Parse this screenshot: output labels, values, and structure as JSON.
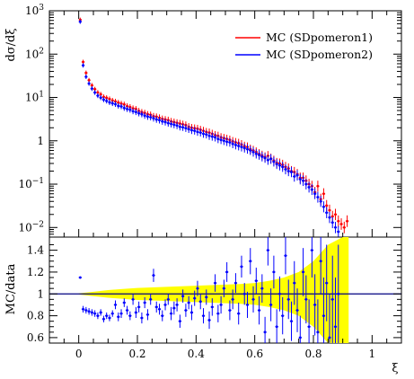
{
  "chart_data": [
    {
      "type": "scatter",
      "panel": "main",
      "ylabel": "dσ/dξ",
      "yscale": "log",
      "ylim": [
        0.006,
        1000
      ],
      "xlim": [
        -0.1,
        1.1
      ],
      "y_ticks": [
        {
          "value": 0.01,
          "base": "10",
          "exp": "−2"
        },
        {
          "value": 0.1,
          "base": "10",
          "exp": "−1"
        },
        {
          "value": 1,
          "base": "1",
          "exp": ""
        },
        {
          "value": 10,
          "base": "10",
          "exp": "1"
        },
        {
          "value": 100,
          "base": "10",
          "exp": "2"
        },
        {
          "value": 1000,
          "base": "10",
          "exp": "3"
        }
      ],
      "legend": "top-right",
      "series": [
        {
          "name": "MC (SDpomeron1)",
          "color": "#ff0000",
          "x": [
            0.005,
            0.015,
            0.025,
            0.035,
            0.045,
            0.055,
            0.065,
            0.075,
            0.085,
            0.095,
            0.105,
            0.115,
            0.125,
            0.135,
            0.145,
            0.155,
            0.165,
            0.175,
            0.185,
            0.195,
            0.205,
            0.215,
            0.225,
            0.235,
            0.245,
            0.255,
            0.265,
            0.275,
            0.285,
            0.295,
            0.305,
            0.315,
            0.325,
            0.335,
            0.345,
            0.355,
            0.365,
            0.375,
            0.385,
            0.395,
            0.405,
            0.415,
            0.425,
            0.435,
            0.445,
            0.455,
            0.465,
            0.475,
            0.485,
            0.495,
            0.505,
            0.515,
            0.525,
            0.535,
            0.545,
            0.555,
            0.565,
            0.575,
            0.585,
            0.595,
            0.605,
            0.615,
            0.625,
            0.635,
            0.645,
            0.655,
            0.665,
            0.675,
            0.685,
            0.695,
            0.705,
            0.715,
            0.725,
            0.735,
            0.745,
            0.755,
            0.765,
            0.775,
            0.785,
            0.795,
            0.805,
            0.815,
            0.825,
            0.835,
            0.845,
            0.855,
            0.865,
            0.875,
            0.885,
            0.895,
            0.905,
            0.915
          ],
          "y": [
            620,
            66,
            37,
            25,
            19,
            15.5,
            13,
            11.8,
            10.3,
            9.8,
            9.2,
            8.5,
            8.1,
            7.6,
            7.2,
            6.9,
            6.3,
            6.0,
            5.6,
            5.4,
            4.9,
            4.6,
            4.4,
            4.1,
            4.0,
            3.7,
            3.6,
            3.4,
            3.2,
            3.1,
            3.0,
            2.8,
            2.7,
            2.6,
            2.5,
            2.4,
            2.3,
            2.1,
            2.0,
            1.95,
            1.9,
            1.8,
            1.7,
            1.6,
            1.55,
            1.45,
            1.35,
            1.3,
            1.2,
            1.15,
            1.1,
            1.05,
            0.97,
            0.92,
            0.88,
            0.82,
            0.75,
            0.72,
            0.64,
            0.6,
            0.55,
            0.5,
            0.46,
            0.42,
            0.45,
            0.39,
            0.35,
            0.31,
            0.3,
            0.28,
            0.25,
            0.23,
            0.2,
            0.19,
            0.17,
            0.14,
            0.14,
            0.12,
            0.1,
            0.09,
            0.065,
            0.09,
            0.045,
            0.06,
            0.032,
            0.025,
            0.018,
            0.02,
            0.014,
            0.012,
            0.01,
            0.014
          ]
        },
        {
          "name": "MC (SDpomeron2)",
          "color": "#0000ff",
          "x": [
            0.005,
            0.015,
            0.025,
            0.035,
            0.045,
            0.055,
            0.065,
            0.075,
            0.085,
            0.095,
            0.105,
            0.115,
            0.125,
            0.135,
            0.145,
            0.155,
            0.165,
            0.175,
            0.185,
            0.195,
            0.205,
            0.215,
            0.225,
            0.235,
            0.245,
            0.255,
            0.265,
            0.275,
            0.285,
            0.295,
            0.305,
            0.315,
            0.325,
            0.335,
            0.345,
            0.355,
            0.365,
            0.375,
            0.385,
            0.395,
            0.405,
            0.415,
            0.425,
            0.435,
            0.445,
            0.455,
            0.465,
            0.475,
            0.485,
            0.495,
            0.505,
            0.515,
            0.525,
            0.535,
            0.545,
            0.555,
            0.565,
            0.575,
            0.585,
            0.595,
            0.605,
            0.615,
            0.625,
            0.635,
            0.645,
            0.655,
            0.665,
            0.675,
            0.685,
            0.695,
            0.705,
            0.715,
            0.725,
            0.735,
            0.745,
            0.755,
            0.765,
            0.775,
            0.785,
            0.795,
            0.805,
            0.815,
            0.825,
            0.835,
            0.845,
            0.855,
            0.865,
            0.875,
            0.885
          ],
          "y": [
            560,
            55,
            30,
            21,
            16,
            13,
            11,
            9.9,
            8.9,
            8.3,
            7.7,
            7.3,
            7.0,
            6.4,
            6.2,
            5.7,
            5.4,
            5.2,
            4.8,
            4.6,
            4.3,
            4.1,
            3.8,
            3.6,
            3.5,
            3.3,
            3.1,
            3.0,
            2.8,
            2.7,
            2.55,
            2.45,
            2.35,
            2.25,
            2.1,
            2.05,
            1.95,
            1.85,
            1.75,
            1.7,
            1.6,
            1.55,
            1.45,
            1.4,
            1.3,
            1.25,
            1.2,
            1.1,
            1.05,
            1.0,
            0.95,
            0.92,
            0.85,
            0.8,
            0.76,
            0.72,
            0.68,
            0.64,
            0.6,
            0.55,
            0.5,
            0.47,
            0.43,
            0.4,
            0.36,
            0.38,
            0.33,
            0.29,
            0.27,
            0.25,
            0.22,
            0.2,
            0.19,
            0.15,
            0.16,
            0.13,
            0.12,
            0.1,
            0.085,
            0.075,
            0.06,
            0.05,
            0.04,
            0.03,
            0.022,
            0.017,
            0.013,
            0.01,
            0.008
          ]
        }
      ]
    },
    {
      "type": "scatter",
      "panel": "ratio",
      "ylabel": "MC/data",
      "xlabel": "ξ",
      "ylim": [
        0.55,
        1.52
      ],
      "xlim": [
        -0.1,
        1.1
      ],
      "y_ticks": [
        "0.6",
        "0.8",
        "1",
        "1.2",
        "1.4"
      ],
      "x_ticks": [
        "0",
        "0.2",
        "0.4",
        "0.6",
        "0.8",
        "1"
      ],
      "x_tick_values": [
        0,
        0.2,
        0.4,
        0.6,
        0.8,
        1
      ],
      "y_tick_values": [
        0.6,
        0.8,
        1.0,
        1.2,
        1.4
      ],
      "reference_line": 1.0,
      "band_color": "#ffff00",
      "band": {
        "x": [
          0.0,
          0.05,
          0.1,
          0.15,
          0.2,
          0.25,
          0.3,
          0.35,
          0.4,
          0.45,
          0.5,
          0.55,
          0.6,
          0.65,
          0.7,
          0.75,
          0.8,
          0.85,
          0.9,
          0.92
        ],
        "half_width": [
          0.005,
          0.02,
          0.035,
          0.045,
          0.055,
          0.06,
          0.065,
          0.07,
          0.075,
          0.08,
          0.085,
          0.09,
          0.1,
          0.12,
          0.15,
          0.2,
          0.3,
          0.45,
          0.55,
          0.55
        ]
      },
      "series": [
        {
          "name": "MC (SDpomeron2)",
          "color": "#0000ff",
          "x": [
            0.005,
            0.015,
            0.025,
            0.035,
            0.045,
            0.055,
            0.065,
            0.075,
            0.085,
            0.095,
            0.105,
            0.115,
            0.125,
            0.135,
            0.145,
            0.155,
            0.165,
            0.175,
            0.185,
            0.195,
            0.205,
            0.215,
            0.225,
            0.235,
            0.245,
            0.255,
            0.265,
            0.275,
            0.285,
            0.295,
            0.305,
            0.315,
            0.325,
            0.335,
            0.345,
            0.355,
            0.365,
            0.375,
            0.385,
            0.395,
            0.405,
            0.415,
            0.425,
            0.435,
            0.445,
            0.455,
            0.465,
            0.475,
            0.485,
            0.495,
            0.505,
            0.515,
            0.525,
            0.535,
            0.545,
            0.555,
            0.565,
            0.575,
            0.585,
            0.595,
            0.605,
            0.615,
            0.625,
            0.635,
            0.645,
            0.655,
            0.665,
            0.675,
            0.685,
            0.695,
            0.705,
            0.715,
            0.725,
            0.735,
            0.745,
            0.755,
            0.765,
            0.775,
            0.785,
            0.795,
            0.805,
            0.815,
            0.825,
            0.835,
            0.845,
            0.855,
            0.865,
            0.875,
            0.885
          ],
          "y": [
            1.15,
            0.86,
            0.85,
            0.84,
            0.83,
            0.82,
            0.8,
            0.83,
            0.77,
            0.8,
            0.78,
            0.82,
            0.9,
            0.79,
            0.82,
            0.92,
            0.85,
            0.8,
            0.95,
            0.83,
            0.88,
            0.78,
            0.92,
            0.81,
            0.95,
            1.17,
            0.88,
            0.86,
            0.8,
            0.9,
            0.95,
            0.82,
            0.87,
            0.9,
            0.75,
            0.98,
            0.85,
            0.92,
            0.83,
            0.96,
            1.05,
            0.93,
            0.8,
            0.97,
            0.76,
            0.88,
            1.1,
            0.82,
            0.9,
            1.05,
            1.2,
            0.85,
            0.95,
            1.1,
            0.82,
            1.25,
            1.0,
            0.9,
            1.3,
            0.95,
            1.12,
            0.85,
            1.05,
            0.65,
            1.4,
            0.9,
            1.2,
            0.7,
            1.0,
            0.8,
            1.35,
            0.95,
            0.75,
            1.1,
            0.85,
            0.6,
            1.2,
            0.95,
            0.7,
            1.4,
            0.9,
            0.65,
            1.3,
            0.8,
            1.1,
            0.6,
            0.95,
            0.7,
            1.0
          ],
          "err": [
            0.01,
            0.03,
            0.03,
            0.03,
            0.03,
            0.03,
            0.03,
            0.03,
            0.03,
            0.03,
            0.03,
            0.03,
            0.04,
            0.04,
            0.04,
            0.04,
            0.04,
            0.04,
            0.05,
            0.05,
            0.05,
            0.05,
            0.05,
            0.05,
            0.05,
            0.06,
            0.05,
            0.05,
            0.05,
            0.05,
            0.05,
            0.06,
            0.06,
            0.06,
            0.06,
            0.06,
            0.06,
            0.06,
            0.07,
            0.07,
            0.07,
            0.07,
            0.07,
            0.07,
            0.08,
            0.08,
            0.08,
            0.08,
            0.08,
            0.08,
            0.09,
            0.09,
            0.09,
            0.09,
            0.1,
            0.1,
            0.1,
            0.12,
            0.12,
            0.12,
            0.12,
            0.13,
            0.13,
            0.14,
            0.14,
            0.15,
            0.15,
            0.16,
            0.16,
            0.17,
            0.17,
            0.18,
            0.18,
            0.2,
            0.2,
            0.2,
            0.22,
            0.22,
            0.25,
            0.25,
            0.28,
            0.3,
            0.3,
            0.35,
            0.35,
            0.4,
            0.4,
            0.45,
            0.45
          ]
        }
      ]
    }
  ]
}
